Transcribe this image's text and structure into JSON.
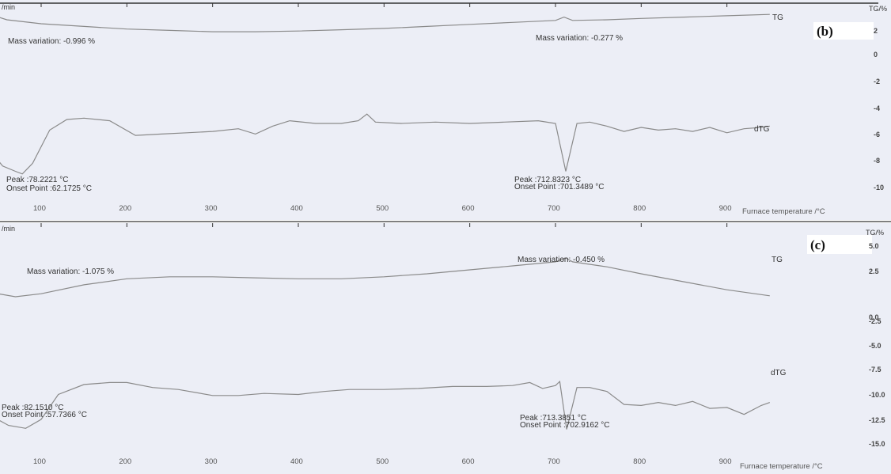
{
  "chart_data": [
    {
      "panel": "(b)",
      "type": "line",
      "unit_label_left": "/min",
      "unit_label_right": "TG/%",
      "xlabel": "Furnace temperature /°C",
      "xticks": [
        "100",
        "200",
        "300",
        "400",
        "500",
        "600",
        "700",
        "800",
        "900"
      ],
      "yticks": [
        "2",
        "0",
        "-2",
        "-4",
        "-6",
        "-8",
        "-10"
      ],
      "series": [
        {
          "name": "TG",
          "x": [
            25,
            60,
            100,
            150,
            200,
            250,
            300,
            350,
            400,
            450,
            500,
            550,
            600,
            650,
            700,
            710,
            720,
            760,
            800,
            850,
            900,
            950
          ],
          "y": [
            3.5,
            2.8,
            2.5,
            2.3,
            2.1,
            2.0,
            1.9,
            1.9,
            1.95,
            2.05,
            2.15,
            2.3,
            2.45,
            2.6,
            2.75,
            3.0,
            2.75,
            2.8,
            2.9,
            3.0,
            3.1,
            3.2
          ]
        },
        {
          "name": "dTG",
          "x": [
            25,
            40,
            55,
            70,
            78,
            90,
            110,
            130,
            150,
            180,
            210,
            240,
            270,
            300,
            330,
            350,
            370,
            390,
            420,
            450,
            470,
            480,
            490,
            520,
            560,
            600,
            640,
            680,
            700,
            712,
            725,
            740,
            760,
            780,
            800,
            820,
            840,
            860,
            880,
            900,
            920,
            940,
            950
          ],
          "y": [
            -5.8,
            -7.0,
            -8.2,
            -8.6,
            -8.8,
            -8.0,
            -5.5,
            -4.7,
            -4.6,
            -4.8,
            -5.9,
            -5.8,
            -5.7,
            -5.6,
            -5.4,
            -5.8,
            -5.2,
            -4.8,
            -5.0,
            -5.0,
            -4.8,
            -4.3,
            -4.9,
            -5.0,
            -4.9,
            -5.0,
            -4.9,
            -4.8,
            -5.0,
            -8.6,
            -5.0,
            -4.9,
            -5.2,
            -5.6,
            -5.3,
            -5.5,
            -5.4,
            -5.6,
            -5.3,
            -5.7,
            -5.4,
            -5.3,
            -5.2
          ]
        }
      ],
      "annotations": {
        "mass1": "Mass variation: -0.996 %",
        "mass2": "Mass variation: -0.277 %",
        "peak1": "Peak :78.2221 °C",
        "onset1": "Onset Point :62.1725 °C",
        "peak2": "Peak :712.8323 °C",
        "onset2": "Onset Point :701.3489 °C",
        "tg_label": "TG",
        "dtg_label": "dTG"
      }
    },
    {
      "panel": "(c)",
      "type": "line",
      "unit_label_left": "/min",
      "unit_label_right": "TG/%",
      "xlabel": "Furnace temperature /°C",
      "xticks": [
        "100",
        "200",
        "300",
        "400",
        "500",
        "600",
        "700",
        "800",
        "900"
      ],
      "yticks": [
        "5.0",
        "2.5",
        "0.0",
        "-2.5",
        "-5.0",
        "-7.5",
        "-10.0",
        "-12.5",
        "-15.0"
      ],
      "series": [
        {
          "name": "TG",
          "x": [
            25,
            50,
            70,
            100,
            150,
            200,
            250,
            300,
            350,
            400,
            450,
            500,
            550,
            600,
            650,
            700,
            712,
            720,
            760,
            800,
            850,
            900,
            950
          ],
          "y": [
            4.2,
            2.6,
            2.3,
            2.6,
            3.5,
            4.1,
            4.3,
            4.3,
            4.2,
            4.1,
            4.1,
            4.3,
            4.6,
            5.0,
            5.4,
            5.8,
            6.2,
            5.8,
            5.3,
            4.6,
            3.8,
            3.0,
            2.4
          ]
        },
        {
          "name": "dTG",
          "x": [
            25,
            45,
            62,
            82,
            100,
            120,
            150,
            180,
            200,
            230,
            260,
            300,
            330,
            360,
            400,
            430,
            460,
            500,
            540,
            580,
            620,
            650,
            670,
            685,
            700,
            705,
            713,
            725,
            740,
            760,
            780,
            800,
            820,
            840,
            860,
            880,
            900,
            920,
            940,
            950
          ],
          "y": [
            -8.5,
            -9.8,
            -10.6,
            -10.9,
            -10.0,
            -7.5,
            -6.5,
            -6.3,
            -6.3,
            -6.8,
            -7.0,
            -7.6,
            -7.6,
            -7.4,
            -7.5,
            -7.2,
            -7.0,
            -7.0,
            -6.9,
            -6.7,
            -6.7,
            -6.6,
            -6.3,
            -6.9,
            -6.6,
            -6.2,
            -11.0,
            -6.8,
            -6.8,
            -7.2,
            -8.5,
            -8.6,
            -8.3,
            -8.6,
            -8.2,
            -8.9,
            -8.8,
            -9.5,
            -8.6,
            -8.3
          ]
        }
      ],
      "annotations": {
        "mass1": "Mass variation: -1.075 %",
        "mass2": "Mass variation: -0.450 %",
        "peak1": "Peak :82.1510 °C",
        "onset1": "Onset Point :57.7366 °C",
        "peak2": "Peak :713.3851 °C",
        "onset2": "Onset Point :702.9162 °C",
        "tg_label": "TG",
        "dtg_label": "dTG"
      }
    }
  ]
}
